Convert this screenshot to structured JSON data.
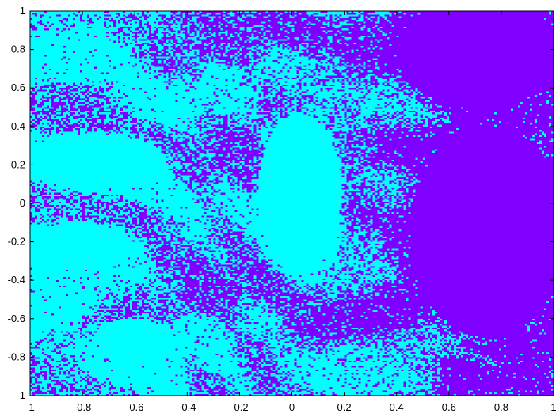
{
  "chart_data": {
    "type": "heatmap",
    "title": "",
    "xlabel": "",
    "ylabel": "",
    "xlim": [
      -1,
      1
    ],
    "ylim": [
      -1,
      1
    ],
    "x_ticks": [
      -1,
      -0.8,
      -0.6,
      -0.4,
      -0.2,
      0,
      0.2,
      0.4,
      0.6,
      0.8,
      1
    ],
    "y_ticks": [
      -1,
      -0.8,
      -0.6,
      -0.4,
      -0.2,
      0,
      0.2,
      0.4,
      0.6,
      0.8,
      1
    ],
    "x_tick_labels": [
      "-1",
      "-0.8",
      "-0.6",
      "-0.4",
      "-0.2",
      "0",
      "0.2",
      "0.4",
      "0.6",
      "0.8",
      "1"
    ],
    "y_tick_labels": [
      "-1",
      "-0.8",
      "-0.6",
      "-0.4",
      "-0.2",
      "0",
      "0.2",
      "0.4",
      "0.6",
      "0.8",
      "1"
    ],
    "colors": {
      "basin_a": "#7f00ff",
      "basin_b": "#00ffff"
    },
    "grid": false,
    "legend": "none",
    "regions": [
      {
        "basin": "b",
        "shape": "ellipse",
        "center": [
          0.03,
          0.05
        ],
        "radii": [
          0.16,
          0.42
        ],
        "note": "central cyan lobe"
      },
      {
        "basin": "b",
        "shape": "ellipse",
        "center": [
          -0.75,
          0.22
        ],
        "radii": [
          0.27,
          0.14
        ]
      },
      {
        "basin": "b",
        "shape": "ellipse",
        "center": [
          -0.82,
          -0.23
        ],
        "radii": [
          0.22,
          0.12
        ]
      },
      {
        "basin": "b",
        "shape": "ellipse",
        "center": [
          -0.6,
          -0.72
        ],
        "radii": [
          0.14,
          0.12
        ]
      },
      {
        "basin": "a",
        "shape": "ellipse",
        "center": [
          0.72,
          0.78
        ],
        "radii": [
          0.32,
          0.28
        ]
      },
      {
        "basin": "a",
        "shape": "ellipse",
        "center": [
          0.75,
          -0.15
        ],
        "radii": [
          0.3,
          0.55
        ]
      }
    ]
  }
}
